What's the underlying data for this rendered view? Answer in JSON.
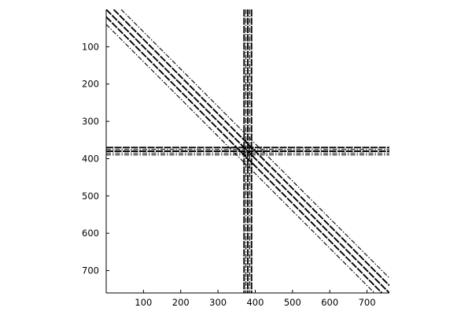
{
  "chart_data": {
    "type": "heatmap",
    "subtype": "sparsity-pattern",
    "title": "",
    "xlabel": "",
    "ylabel": "",
    "xlim": [
      0,
      760
    ],
    "ylim": [
      760,
      0
    ],
    "y_axis_reversed": true,
    "xticks": [
      100,
      200,
      300,
      400,
      500,
      600,
      700
    ],
    "yticks": [
      100,
      200,
      300,
      400,
      500,
      600,
      700
    ],
    "xtick_labels": [
      "100",
      "200",
      "300",
      "400",
      "500",
      "600",
      "700"
    ],
    "ytick_labels": [
      "100",
      "200",
      "300",
      "400",
      "500",
      "600",
      "700"
    ],
    "grid": false,
    "legend": "none",
    "diagonal_bands": [
      {
        "col_offset": -40,
        "weight": "thin"
      },
      {
        "col_offset": -20,
        "weight": "heavy"
      },
      {
        "col_offset": 0,
        "weight": "heavy"
      },
      {
        "col_offset": 20,
        "weight": "heavy"
      },
      {
        "col_offset": 40,
        "weight": "thin"
      }
    ],
    "dense_columns": [
      {
        "col": 370,
        "weight": "heavy"
      },
      {
        "col": 375,
        "weight": "thin"
      },
      {
        "col": 380,
        "weight": "heavy"
      },
      {
        "col": 385,
        "weight": "thin"
      },
      {
        "col": 390,
        "weight": "heavy"
      }
    ],
    "dense_rows": [
      {
        "row": 370,
        "weight": "heavy"
      },
      {
        "row": 375,
        "weight": "thin"
      },
      {
        "row": 380,
        "weight": "heavy"
      },
      {
        "row": 385,
        "weight": "thin"
      },
      {
        "row": 390,
        "weight": "thin"
      }
    ],
    "marker_color": "#000000"
  }
}
